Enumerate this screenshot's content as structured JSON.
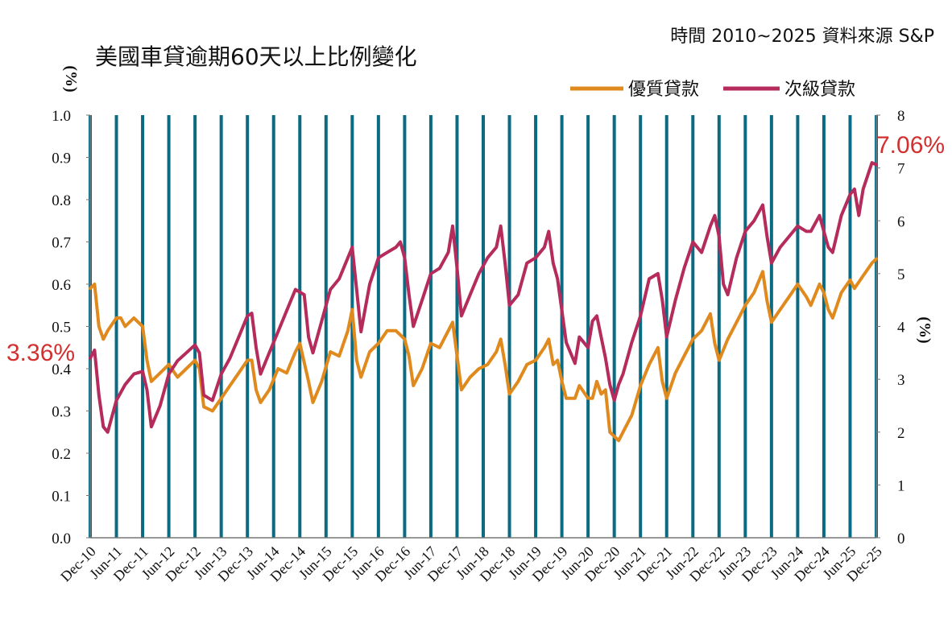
{
  "chart_data": {
    "type": "line",
    "title": "美國車貸逾期60天以上比例變化",
    "source": "時間 2010~2025 資料來源 S&P",
    "left_axis_label": "(%)",
    "right_axis_label": "(%)",
    "ylim_left": [
      0.0,
      1.0
    ],
    "ylim_right": [
      0,
      8
    ],
    "left_ticks": [
      "0.0",
      "0.1",
      "0.2",
      "0.3",
      "0.4",
      "0.5",
      "0.6",
      "0.7",
      "0.8",
      "0.9",
      "1.0"
    ],
    "right_ticks": [
      "0",
      "1",
      "2",
      "3",
      "4",
      "5",
      "6",
      "7",
      "8"
    ],
    "x_tick_labels": [
      "Dec-10",
      "Jun-11",
      "Dec-11",
      "Jun-12",
      "Dec-12",
      "Jun-13",
      "Dec-13",
      "Jun-14",
      "Dec-14",
      "Jun-15",
      "Dec-15",
      "Jun-16",
      "Dec-16",
      "Jun-17",
      "Dec-17",
      "Jun-18",
      "Dec-18",
      "Jun-19",
      "Dec-19",
      "Jun-20",
      "Dec-20",
      "Jun-21",
      "Dec-21",
      "Jun-22",
      "Dec-22",
      "Jun-23",
      "Dec-23",
      "Jun-24",
      "Dec-24",
      "Jun-25",
      "Dec-25"
    ],
    "series": [
      {
        "name": "優質貸款",
        "axis": "left",
        "color": "#E08A1E",
        "anchors": [
          [
            0,
            0.59
          ],
          [
            1,
            0.6
          ],
          [
            2,
            0.5
          ],
          [
            3,
            0.47
          ],
          [
            4,
            0.49
          ],
          [
            6,
            0.52
          ],
          [
            7,
            0.52
          ],
          [
            8,
            0.5
          ],
          [
            10,
            0.52
          ],
          [
            12,
            0.5
          ],
          [
            13,
            0.42
          ],
          [
            14,
            0.37
          ],
          [
            16,
            0.39
          ],
          [
            18,
            0.41
          ],
          [
            20,
            0.38
          ],
          [
            22,
            0.4
          ],
          [
            24,
            0.42
          ],
          [
            25,
            0.4
          ],
          [
            26,
            0.31
          ],
          [
            28,
            0.3
          ],
          [
            30,
            0.33
          ],
          [
            32,
            0.36
          ],
          [
            34,
            0.39
          ],
          [
            36,
            0.42
          ],
          [
            37,
            0.42
          ],
          [
            38,
            0.35
          ],
          [
            39,
            0.32
          ],
          [
            41,
            0.35
          ],
          [
            43,
            0.4
          ],
          [
            45,
            0.39
          ],
          [
            47,
            0.44
          ],
          [
            48,
            0.46
          ],
          [
            50,
            0.37
          ],
          [
            51,
            0.32
          ],
          [
            53,
            0.37
          ],
          [
            55,
            0.44
          ],
          [
            57,
            0.43
          ],
          [
            59,
            0.49
          ],
          [
            60,
            0.54
          ],
          [
            61,
            0.42
          ],
          [
            62,
            0.38
          ],
          [
            64,
            0.44
          ],
          [
            66,
            0.46
          ],
          [
            68,
            0.49
          ],
          [
            70,
            0.49
          ],
          [
            71,
            0.48
          ],
          [
            72,
            0.47
          ],
          [
            73,
            0.43
          ],
          [
            74,
            0.36
          ],
          [
            76,
            0.4
          ],
          [
            78,
            0.46
          ],
          [
            80,
            0.45
          ],
          [
            82,
            0.49
          ],
          [
            83,
            0.51
          ],
          [
            84,
            0.43
          ],
          [
            85,
            0.35
          ],
          [
            87,
            0.38
          ],
          [
            89,
            0.4
          ],
          [
            91,
            0.41
          ],
          [
            93,
            0.44
          ],
          [
            94,
            0.47
          ],
          [
            95,
            0.41
          ],
          [
            96,
            0.34
          ],
          [
            98,
            0.37
          ],
          [
            100,
            0.41
          ],
          [
            102,
            0.42
          ],
          [
            104,
            0.45
          ],
          [
            105,
            0.47
          ],
          [
            106,
            0.41
          ],
          [
            107,
            0.42
          ],
          [
            108,
            0.37
          ],
          [
            109,
            0.33
          ],
          [
            111,
            0.33
          ],
          [
            112,
            0.36
          ],
          [
            114,
            0.33
          ],
          [
            115,
            0.33
          ],
          [
            116,
            0.37
          ],
          [
            117,
            0.34
          ],
          [
            118,
            0.35
          ],
          [
            119,
            0.25
          ],
          [
            121,
            0.23
          ],
          [
            122,
            0.25
          ],
          [
            124,
            0.29
          ],
          [
            126,
            0.36
          ],
          [
            128,
            0.41
          ],
          [
            130,
            0.45
          ],
          [
            131,
            0.37
          ],
          [
            132,
            0.33
          ],
          [
            134,
            0.39
          ],
          [
            136,
            0.43
          ],
          [
            138,
            0.47
          ],
          [
            140,
            0.49
          ],
          [
            142,
            0.53
          ],
          [
            143,
            0.46
          ],
          [
            144,
            0.42
          ],
          [
            146,
            0.47
          ],
          [
            148,
            0.51
          ],
          [
            150,
            0.55
          ],
          [
            152,
            0.58
          ],
          [
            154,
            0.63
          ],
          [
            155,
            0.56
          ],
          [
            156,
            0.51
          ],
          [
            158,
            0.54
          ],
          [
            160,
            0.57
          ],
          [
            162,
            0.6
          ],
          [
            164,
            0.57
          ],
          [
            165,
            0.55
          ],
          [
            167,
            0.6
          ],
          [
            168,
            0.58
          ],
          [
            169,
            0.54
          ],
          [
            170,
            0.52
          ],
          [
            172,
            0.58
          ],
          [
            174,
            0.61
          ],
          [
            175,
            0.59
          ],
          [
            177,
            0.62
          ],
          [
            179,
            0.65
          ],
          [
            180,
            0.66
          ]
        ]
      },
      {
        "name": "次級貸款",
        "axis": "right",
        "color": "#B52B5B",
        "anchors": [
          [
            0,
            3.4
          ],
          [
            1,
            3.55
          ],
          [
            2,
            2.7
          ],
          [
            3,
            2.1
          ],
          [
            4,
            2.0
          ],
          [
            6,
            2.6
          ],
          [
            8,
            2.9
          ],
          [
            10,
            3.1
          ],
          [
            12,
            3.15
          ],
          [
            13,
            2.8
          ],
          [
            14,
            2.1
          ],
          [
            16,
            2.5
          ],
          [
            18,
            3.1
          ],
          [
            20,
            3.35
          ],
          [
            22,
            3.5
          ],
          [
            24,
            3.65
          ],
          [
            25,
            3.5
          ],
          [
            26,
            2.7
          ],
          [
            28,
            2.6
          ],
          [
            30,
            3.1
          ],
          [
            32,
            3.4
          ],
          [
            34,
            3.8
          ],
          [
            36,
            4.2
          ],
          [
            37,
            4.25
          ],
          [
            38,
            3.6
          ],
          [
            39,
            3.1
          ],
          [
            41,
            3.5
          ],
          [
            43,
            3.9
          ],
          [
            45,
            4.3
          ],
          [
            47,
            4.7
          ],
          [
            49,
            4.6
          ],
          [
            50,
            3.8
          ],
          [
            51,
            3.5
          ],
          [
            53,
            4.1
          ],
          [
            55,
            4.7
          ],
          [
            57,
            4.9
          ],
          [
            59,
            5.3
          ],
          [
            60,
            5.5
          ],
          [
            61,
            4.7
          ],
          [
            62,
            3.9
          ],
          [
            64,
            4.8
          ],
          [
            66,
            5.3
          ],
          [
            68,
            5.4
          ],
          [
            70,
            5.5
          ],
          [
            71,
            5.6
          ],
          [
            72,
            5.3
          ],
          [
            73,
            4.6
          ],
          [
            74,
            4.0
          ],
          [
            76,
            4.5
          ],
          [
            78,
            5.0
          ],
          [
            80,
            5.1
          ],
          [
            82,
            5.4
          ],
          [
            83,
            5.9
          ],
          [
            84,
            5.1
          ],
          [
            85,
            4.2
          ],
          [
            87,
            4.6
          ],
          [
            89,
            5.0
          ],
          [
            91,
            5.3
          ],
          [
            93,
            5.5
          ],
          [
            94,
            5.9
          ],
          [
            95,
            5.2
          ],
          [
            96,
            4.4
          ],
          [
            98,
            4.6
          ],
          [
            100,
            5.2
          ],
          [
            102,
            5.3
          ],
          [
            104,
            5.5
          ],
          [
            105,
            5.8
          ],
          [
            106,
            5.2
          ],
          [
            107,
            4.9
          ],
          [
            108,
            4.3
          ],
          [
            109,
            3.7
          ],
          [
            110,
            3.5
          ],
          [
            111,
            3.3
          ],
          [
            112,
            3.8
          ],
          [
            113,
            3.7
          ],
          [
            114,
            3.6
          ],
          [
            115,
            4.1
          ],
          [
            116,
            4.2
          ],
          [
            117,
            3.8
          ],
          [
            118,
            3.4
          ],
          [
            119,
            2.9
          ],
          [
            120,
            2.6
          ],
          [
            121,
            2.9
          ],
          [
            122,
            3.1
          ],
          [
            124,
            3.7
          ],
          [
            126,
            4.2
          ],
          [
            128,
            4.9
          ],
          [
            130,
            5.0
          ],
          [
            131,
            4.5
          ],
          [
            132,
            3.8
          ],
          [
            134,
            4.5
          ],
          [
            136,
            5.1
          ],
          [
            138,
            5.6
          ],
          [
            140,
            5.4
          ],
          [
            142,
            5.9
          ],
          [
            143,
            6.1
          ],
          [
            144,
            5.7
          ],
          [
            145,
            4.8
          ],
          [
            146,
            4.6
          ],
          [
            148,
            5.3
          ],
          [
            150,
            5.8
          ],
          [
            152,
            6.0
          ],
          [
            154,
            6.3
          ],
          [
            155,
            5.7
          ],
          [
            156,
            5.2
          ],
          [
            158,
            5.5
          ],
          [
            160,
            5.7
          ],
          [
            162,
            5.9
          ],
          [
            164,
            5.8
          ],
          [
            165,
            5.8
          ],
          [
            167,
            6.1
          ],
          [
            168,
            5.8
          ],
          [
            169,
            5.5
          ],
          [
            170,
            5.4
          ],
          [
            172,
            6.1
          ],
          [
            174,
            6.5
          ],
          [
            175,
            6.6
          ],
          [
            176,
            6.1
          ],
          [
            177,
            6.6
          ],
          [
            179,
            7.1
          ],
          [
            180,
            7.06
          ]
        ]
      }
    ],
    "annotations": {
      "start_label": "3.36%",
      "end_label": "7.06%"
    },
    "legend_position": "top-right"
  }
}
